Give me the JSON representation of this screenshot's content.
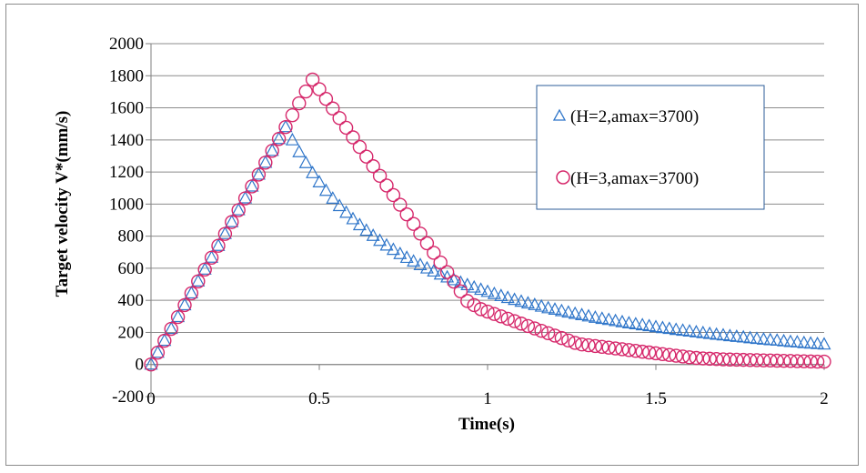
{
  "chart_data": {
    "type": "scatter",
    "title": "",
    "xlabel": "Time(s)",
    "ylabel": "Target velocity V*(mm/s)",
    "xlim": [
      0,
      2
    ],
    "ylim": [
      -200,
      2000
    ],
    "x_ticks": [
      0,
      0.5,
      1,
      1.5,
      2
    ],
    "x_tick_labels": [
      "0",
      "0.5",
      "1",
      "1.5",
      "2"
    ],
    "y_ticks": [
      -200,
      0,
      200,
      400,
      600,
      800,
      1000,
      1200,
      1400,
      1600,
      1800,
      2000
    ],
    "y_tick_labels": [
      "-200",
      "0",
      "200",
      "400",
      "600",
      "800",
      "1000",
      "1200",
      "1400",
      "1600",
      "1800",
      "2000"
    ],
    "grid": "horizontal",
    "legend_position": "top-right",
    "series": [
      {
        "name": "(H=2,amax=3700)",
        "marker": "triangle",
        "color": "#2e75c9",
        "x": [
          0,
          0.02,
          0.04,
          0.06,
          0.08,
          0.1,
          0.12,
          0.14,
          0.16,
          0.18,
          0.2,
          0.22,
          0.24,
          0.26,
          0.28,
          0.3,
          0.32,
          0.34,
          0.36,
          0.38,
          0.4,
          0.42,
          0.44,
          0.46,
          0.48,
          0.5,
          0.52,
          0.54,
          0.56,
          0.58,
          0.6,
          0.62,
          0.64,
          0.66,
          0.68,
          0.7,
          0.72,
          0.74,
          0.76,
          0.78,
          0.8,
          0.82,
          0.84,
          0.86,
          0.88,
          0.9,
          0.92,
          0.94,
          0.96,
          0.98,
          1,
          1.02,
          1.04,
          1.06,
          1.08,
          1.1,
          1.12,
          1.14,
          1.16,
          1.18,
          1.2,
          1.22,
          1.24,
          1.26,
          1.28,
          1.3,
          1.32,
          1.34,
          1.36,
          1.38,
          1.4,
          1.42,
          1.44,
          1.46,
          1.48,
          1.5,
          1.52,
          1.54,
          1.56,
          1.58,
          1.6,
          1.62,
          1.64,
          1.66,
          1.68,
          1.7,
          1.72,
          1.74,
          1.76,
          1.78,
          1.8,
          1.82,
          1.84,
          1.86,
          1.88,
          1.9,
          1.92,
          1.94,
          1.96,
          1.98,
          2
        ],
        "y": [
          0,
          74,
          148,
          222,
          296,
          370,
          444,
          518,
          592,
          666,
          740,
          814,
          888,
          962,
          1036,
          1110,
          1184,
          1258,
          1332,
          1406,
          1480,
          1398,
          1324,
          1256,
          1193,
          1136,
          1083,
          1034,
          988,
          946,
          906,
          869,
          834,
          802,
          771,
          742,
          715,
          689,
          665,
          642,
          620,
          599,
          580,
          561,
          543,
          526,
          510,
          495,
          480,
          466,
          453,
          440,
          427,
          415,
          403,
          392,
          381,
          371,
          361,
          351,
          342,
          333,
          324,
          316,
          308,
          300,
          292,
          285,
          278,
          271,
          264,
          257,
          251,
          245,
          239,
          233,
          227,
          222,
          216,
          211,
          206,
          201,
          196,
          191,
          186,
          182,
          177,
          173,
          169,
          164,
          160,
          156,
          152,
          149,
          145,
          141,
          138,
          134,
          131,
          128,
          125
        ]
      },
      {
        "name": "(H=3,amax=3700)",
        "marker": "circle",
        "color": "#d6286b",
        "x": [
          0,
          0.02,
          0.04,
          0.06,
          0.08,
          0.1,
          0.12,
          0.14,
          0.16,
          0.18,
          0.2,
          0.22,
          0.24,
          0.26,
          0.28,
          0.3,
          0.32,
          0.34,
          0.36,
          0.38,
          0.4,
          0.42,
          0.44,
          0.46,
          0.48,
          0.5,
          0.52,
          0.54,
          0.56,
          0.58,
          0.6,
          0.62,
          0.64,
          0.66,
          0.68,
          0.7,
          0.72,
          0.74,
          0.76,
          0.78,
          0.8,
          0.82,
          0.84,
          0.86,
          0.88,
          0.9,
          0.92,
          0.94,
          0.96,
          0.98,
          1,
          1.02,
          1.04,
          1.06,
          1.08,
          1.1,
          1.12,
          1.14,
          1.16,
          1.18,
          1.2,
          1.22,
          1.24,
          1.26,
          1.28,
          1.3,
          1.32,
          1.34,
          1.36,
          1.38,
          1.4,
          1.42,
          1.44,
          1.46,
          1.48,
          1.5,
          1.52,
          1.54,
          1.56,
          1.58,
          1.6,
          1.62,
          1.64,
          1.66,
          1.68,
          1.7,
          1.72,
          1.74,
          1.76,
          1.78,
          1.8,
          1.82,
          1.84,
          1.86,
          1.88,
          1.9,
          1.92,
          1.94,
          1.96,
          1.98,
          2
        ],
        "y": [
          0,
          74,
          148,
          222,
          296,
          370,
          444,
          518,
          592,
          666,
          740,
          814,
          888,
          962,
          1036,
          1110,
          1184,
          1258,
          1332,
          1406,
          1480,
          1554,
          1628,
          1702,
          1776,
          1716,
          1656,
          1596,
          1536,
          1476,
          1416,
          1356,
          1296,
          1236,
          1176,
          1116,
          1056,
          996,
          936,
          876,
          816,
          756,
          696,
          636,
          576,
          516,
          456,
          396,
          370,
          345,
          330,
          315,
          300,
          285,
          270,
          255,
          240,
          225,
          210,
          195,
          180,
          165,
          150,
          135,
          125,
          120,
          115,
          110,
          105,
          100,
          95,
          90,
          85,
          80,
          75,
          70,
          65,
          60,
          55,
          50,
          45,
          41,
          38,
          36,
          34,
          32,
          31,
          30,
          29,
          28,
          27,
          26,
          25,
          24,
          23,
          22,
          21,
          20,
          19,
          18,
          18
        ]
      }
    ]
  }
}
